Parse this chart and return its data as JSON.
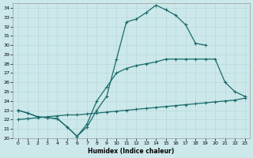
{
  "xlabel": "Humidex (Indice chaleur)",
  "xlim": [
    -0.5,
    23.5
  ],
  "ylim": [
    20,
    34.5
  ],
  "xticks": [
    0,
    1,
    2,
    3,
    4,
    5,
    6,
    7,
    8,
    9,
    10,
    11,
    12,
    13,
    14,
    15,
    16,
    17,
    18,
    19,
    20,
    21,
    22,
    23
  ],
  "yticks": [
    20,
    21,
    22,
    23,
    24,
    25,
    26,
    27,
    28,
    29,
    30,
    31,
    32,
    33,
    34
  ],
  "bg_color": "#cce8ea",
  "line_color": "#1a6b6b",
  "grid_color": "#b8d8db",
  "line1_x": [
    0,
    1,
    2,
    3,
    4,
    5,
    6,
    7,
    8,
    9,
    10,
    11,
    12,
    13,
    14,
    15,
    16,
    17,
    18,
    19
  ],
  "line1_y": [
    23.0,
    22.7,
    22.3,
    22.2,
    22.1,
    21.2,
    20.2,
    21.2,
    23.0,
    24.5,
    28.5,
    32.5,
    32.8,
    33.5,
    34.3,
    33.8,
    33.2,
    32.2,
    30.2,
    30.0
  ],
  "line2_x": [
    0,
    1,
    2,
    3,
    4,
    5,
    6,
    7,
    8,
    9,
    10,
    11,
    12,
    13,
    14,
    15,
    16,
    17,
    18,
    19,
    20,
    21,
    22,
    23
  ],
  "line2_y": [
    23.0,
    22.7,
    22.3,
    22.2,
    22.1,
    21.2,
    20.2,
    21.5,
    24.0,
    25.5,
    27.0,
    27.5,
    27.8,
    28.0,
    28.2,
    28.5,
    28.5,
    28.5,
    28.5,
    28.5,
    28.5,
    26.0,
    25.0,
    24.5
  ],
  "line3_x": [
    0,
    1,
    2,
    3,
    4,
    5,
    6,
    7,
    8,
    9,
    10,
    11,
    12,
    13,
    14,
    15,
    16,
    17,
    18,
    19,
    20,
    21,
    22,
    23
  ],
  "line3_y": [
    22.0,
    22.1,
    22.2,
    22.3,
    22.4,
    22.5,
    22.5,
    22.6,
    22.7,
    22.8,
    22.9,
    23.0,
    23.1,
    23.2,
    23.3,
    23.4,
    23.5,
    23.6,
    23.7,
    23.8,
    23.9,
    24.0,
    24.1,
    24.3
  ]
}
